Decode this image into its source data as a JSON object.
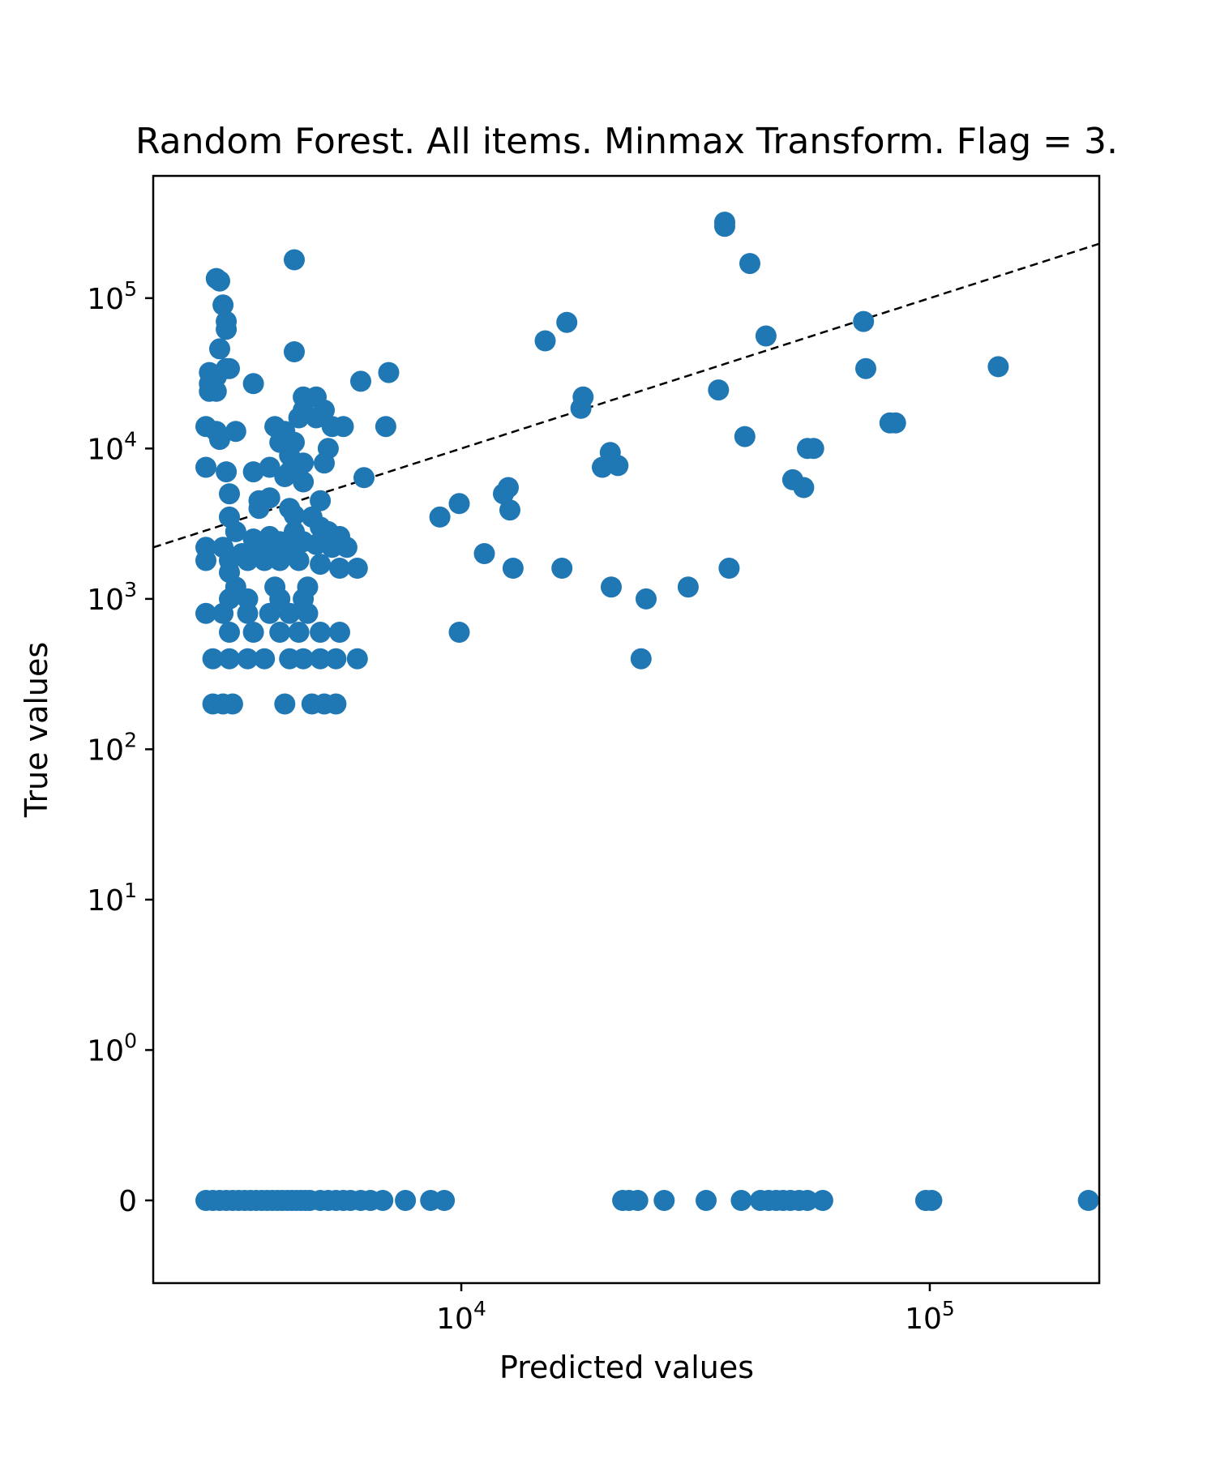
{
  "chart_data": {
    "type": "scatter",
    "title": "Random Forest. All items. Minmax Transform. Flag = 3.",
    "xlabel": "Predicted values",
    "ylabel": "True values",
    "x_scale": "log",
    "y_scale": "symlog",
    "x_ticks": [
      {
        "value": 10000,
        "base": "10",
        "exp": "4"
      },
      {
        "value": 100000,
        "base": "10",
        "exp": "5"
      }
    ],
    "y_ticks": [
      {
        "value": 0,
        "base": "0",
        "exp": ""
      },
      {
        "value": 1,
        "base": "10",
        "exp": "0"
      },
      {
        "value": 10,
        "base": "10",
        "exp": "1"
      },
      {
        "value": 100,
        "base": "10",
        "exp": "2"
      },
      {
        "value": 1000,
        "base": "10",
        "exp": "3"
      },
      {
        "value": 10000,
        "base": "10",
        "exp": "4"
      },
      {
        "value": 100000,
        "base": "10",
        "exp": "5"
      }
    ],
    "xlim": [
      2200,
      230000
    ],
    "ylim": [
      -0.55,
      650000
    ],
    "grid": false,
    "colors": {
      "points": "#1f77b4",
      "reference_line": "#000000"
    },
    "reference_line": "y = x (dashed)",
    "points": [
      [
        4400,
        180000
      ],
      [
        3000,
        135000
      ],
      [
        3050,
        130000
      ],
      [
        3100,
        90000
      ],
      [
        3150,
        70000
      ],
      [
        3150,
        62000
      ],
      [
        3050,
        46000
      ],
      [
        4400,
        44000
      ],
      [
        2900,
        32000
      ],
      [
        3000,
        30000
      ],
      [
        3150,
        34000
      ],
      [
        3200,
        34000
      ],
      [
        2900,
        27000
      ],
      [
        2900,
        24000
      ],
      [
        3000,
        24000
      ],
      [
        3600,
        27000
      ],
      [
        6100,
        28000
      ],
      [
        4600,
        22000
      ],
      [
        4900,
        22000
      ],
      [
        4600,
        18000
      ],
      [
        5100,
        18000
      ],
      [
        4900,
        16000
      ],
      [
        4500,
        16000
      ],
      [
        4000,
        14000
      ],
      [
        4200,
        13000
      ],
      [
        5300,
        14000
      ],
      [
        5600,
        14000
      ],
      [
        6900,
        14000
      ],
      [
        2850,
        14000
      ],
      [
        3000,
        13000
      ],
      [
        3300,
        13000
      ],
      [
        3050,
        11500
      ],
      [
        4100,
        11000
      ],
      [
        4400,
        11000
      ],
      [
        5200,
        10000
      ],
      [
        4300,
        9000
      ],
      [
        2850,
        7500
      ],
      [
        3150,
        7000
      ],
      [
        3600,
        7000
      ],
      [
        3900,
        7500
      ],
      [
        4300,
        7000
      ],
      [
        4600,
        8000
      ],
      [
        5100,
        8000
      ],
      [
        4200,
        6500
      ],
      [
        4600,
        6000
      ],
      [
        6200,
        6400
      ],
      [
        3200,
        5000
      ],
      [
        3700,
        4500
      ],
      [
        3900,
        4700
      ],
      [
        4300,
        4000
      ],
      [
        5000,
        4500
      ],
      [
        3200,
        3500
      ],
      [
        3700,
        4000
      ],
      [
        4400,
        3600
      ],
      [
        4800,
        3500
      ],
      [
        5000,
        3000
      ],
      [
        3300,
        2800
      ],
      [
        3600,
        2500
      ],
      [
        3900,
        2600
      ],
      [
        4100,
        2400
      ],
      [
        4400,
        2800
      ],
      [
        5200,
        2800
      ],
      [
        5500,
        2600
      ],
      [
        2850,
        2200
      ],
      [
        3100,
        2200
      ],
      [
        3400,
        2000
      ],
      [
        3700,
        2100
      ],
      [
        4000,
        2000
      ],
      [
        4300,
        2200
      ],
      [
        4600,
        2400
      ],
      [
        4900,
        2300
      ],
      [
        5300,
        2200
      ],
      [
        5700,
        2200
      ],
      [
        2850,
        1800
      ],
      [
        3200,
        1800
      ],
      [
        3500,
        1800
      ],
      [
        3800,
        1800
      ],
      [
        4100,
        1800
      ],
      [
        4500,
        1800
      ],
      [
        5000,
        1700
      ],
      [
        5500,
        1600
      ],
      [
        6000,
        1600
      ],
      [
        3200,
        1500
      ],
      [
        3300,
        1200
      ],
      [
        4000,
        1200
      ],
      [
        4700,
        1200
      ],
      [
        3200,
        1000
      ],
      [
        3500,
        1000
      ],
      [
        4100,
        1000
      ],
      [
        4600,
        1000
      ],
      [
        2850,
        800
      ],
      [
        3100,
        800
      ],
      [
        3500,
        800
      ],
      [
        3900,
        800
      ],
      [
        4300,
        800
      ],
      [
        4700,
        800
      ],
      [
        3200,
        600
      ],
      [
        3600,
        600
      ],
      [
        4100,
        600
      ],
      [
        4500,
        600
      ],
      [
        5000,
        600
      ],
      [
        5500,
        600
      ],
      [
        2950,
        400
      ],
      [
        3200,
        400
      ],
      [
        3500,
        400
      ],
      [
        3800,
        400
      ],
      [
        4300,
        400
      ],
      [
        4600,
        400
      ],
      [
        5000,
        400
      ],
      [
        5400,
        400
      ],
      [
        6000,
        400
      ],
      [
        2950,
        200
      ],
      [
        3100,
        200
      ],
      [
        3250,
        200
      ],
      [
        4200,
        200
      ],
      [
        4800,
        200
      ],
      [
        5100,
        200
      ],
      [
        5400,
        200
      ],
      [
        7000,
        32000
      ],
      [
        9000,
        3500
      ],
      [
        9900,
        4300
      ],
      [
        11200,
        2000
      ],
      [
        12300,
        5000
      ],
      [
        12600,
        5500
      ],
      [
        12700,
        3900
      ],
      [
        12900,
        1600
      ],
      [
        9900,
        600
      ],
      [
        15100,
        52000
      ],
      [
        16800,
        69000
      ],
      [
        16400,
        1600
      ],
      [
        18200,
        22000
      ],
      [
        18000,
        18500
      ],
      [
        20800,
        9400
      ],
      [
        20000,
        7500
      ],
      [
        21600,
        7700
      ],
      [
        20900,
        1200
      ],
      [
        24800,
        1000
      ],
      [
        24200,
        400
      ],
      [
        30500,
        1200
      ],
      [
        36500,
        300000
      ],
      [
        36500,
        320000
      ],
      [
        41300,
        170000
      ],
      [
        35400,
        24500
      ],
      [
        40300,
        12000
      ],
      [
        37300,
        1600
      ],
      [
        44700,
        56000
      ],
      [
        51000,
        6200
      ],
      [
        53800,
        5500
      ],
      [
        54800,
        10000
      ],
      [
        56500,
        10000
      ],
      [
        72200,
        70000
      ],
      [
        73000,
        34000
      ],
      [
        82200,
        14800
      ],
      [
        84500,
        14800
      ],
      [
        140000,
        35000
      ],
      [
        2850,
        0
      ],
      [
        2950,
        0
      ],
      [
        3050,
        0
      ],
      [
        3150,
        0
      ],
      [
        3250,
        0
      ],
      [
        3350,
        0
      ],
      [
        3450,
        0
      ],
      [
        3550,
        0
      ],
      [
        3650,
        0
      ],
      [
        3750,
        0
      ],
      [
        3850,
        0
      ],
      [
        3950,
        0
      ],
      [
        4050,
        0
      ],
      [
        4150,
        0
      ],
      [
        4250,
        0
      ],
      [
        4350,
        0
      ],
      [
        4450,
        0
      ],
      [
        4550,
        0
      ],
      [
        4650,
        0
      ],
      [
        4750,
        0
      ],
      [
        5000,
        0
      ],
      [
        5200,
        0
      ],
      [
        5400,
        0
      ],
      [
        5600,
        0
      ],
      [
        5800,
        0
      ],
      [
        6100,
        0
      ],
      [
        6400,
        0
      ],
      [
        6800,
        0
      ],
      [
        7600,
        0
      ],
      [
        8600,
        0
      ],
      [
        9200,
        0
      ],
      [
        22100,
        0
      ],
      [
        22800,
        0
      ],
      [
        23800,
        0
      ],
      [
        27100,
        0
      ],
      [
        33300,
        0
      ],
      [
        39600,
        0
      ],
      [
        43500,
        0
      ],
      [
        45300,
        0
      ],
      [
        47000,
        0
      ],
      [
        48600,
        0
      ],
      [
        50400,
        0
      ],
      [
        52600,
        0
      ],
      [
        54800,
        0
      ],
      [
        59100,
        0
      ],
      [
        98000,
        0
      ],
      [
        101000,
        0
      ],
      [
        218000,
        0
      ]
    ]
  }
}
